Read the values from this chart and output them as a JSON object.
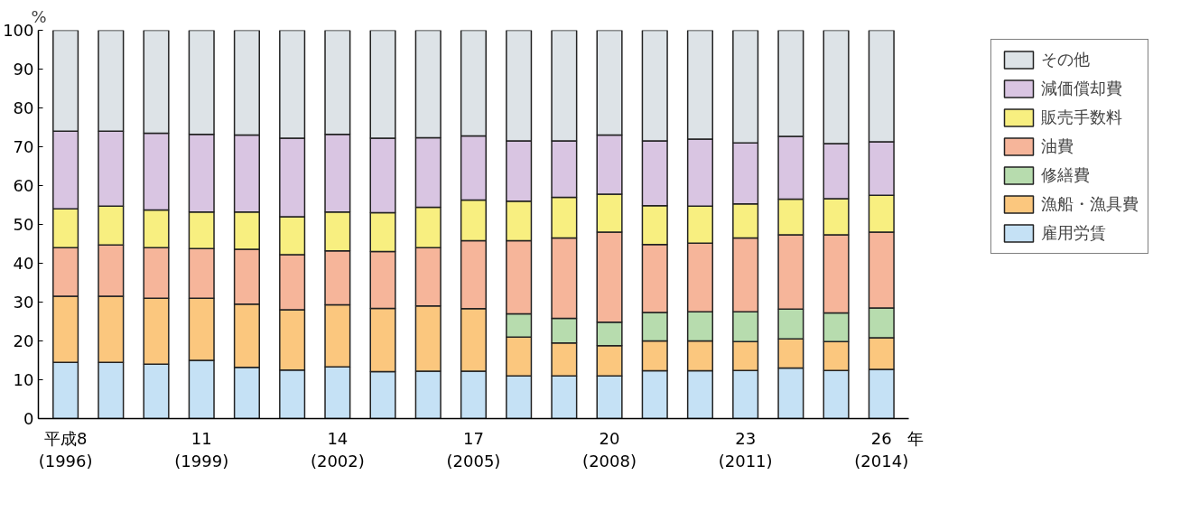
{
  "chart_data": {
    "type": "bar",
    "stacked": true,
    "ylabel": "%",
    "xlabel": "年",
    "categories": [
      "平成8\n(1996)",
      null,
      null,
      "11\n(1999)",
      null,
      null,
      "14\n(2002)",
      null,
      null,
      "17\n(2005)",
      null,
      null,
      "20\n(2008)",
      null,
      null,
      "23\n(2011)",
      null,
      null,
      "26\n(2014)"
    ],
    "series": [
      {
        "name": "雇用労賃",
        "color": "#c5e1f5",
        "values": [
          14.5,
          14.5,
          14,
          15,
          13.2,
          12.5,
          13.3,
          12.1,
          12.2,
          12.2,
          11,
          11,
          11,
          12.3,
          12.3,
          12.4,
          13,
          12.4,
          12.7
        ]
      },
      {
        "name": "漁船・漁具費",
        "color": "#fbc77e",
        "values": [
          17,
          17,
          17,
          16,
          16.3,
          15.5,
          16,
          16.3,
          16.8,
          16.1,
          10,
          8.5,
          7.8,
          7.7,
          7.7,
          7.4,
          7.5,
          7.4,
          8.1
        ]
      },
      {
        "name": "修繕費",
        "color": "#b7dcae",
        "values": [
          null,
          null,
          null,
          null,
          null,
          null,
          null,
          null,
          null,
          null,
          6,
          6.3,
          6,
          7.3,
          7.5,
          7.7,
          7.7,
          7.4,
          7.7
        ]
      },
      {
        "name": "油費",
        "color": "#f6b59a",
        "values": [
          12.5,
          13.2,
          13,
          12.8,
          14.1,
          14.2,
          13.9,
          14.6,
          15,
          17.5,
          18.8,
          20.7,
          23.2,
          17.5,
          17.7,
          19,
          19.1,
          20.1,
          19.5
        ]
      },
      {
        "name": "販売手数料",
        "color": "#f8ef80",
        "values": [
          10,
          10,
          9.7,
          9.4,
          9.6,
          9.8,
          10,
          10,
          10.4,
          10.5,
          10.2,
          10.5,
          9.8,
          10,
          9.5,
          8.8,
          9.2,
          9.3,
          9.5
        ]
      },
      {
        "name": "減価償却費",
        "color": "#d9c5e2",
        "values": [
          20,
          19.3,
          19.8,
          20,
          19.8,
          20.2,
          20,
          19.2,
          17.9,
          16.5,
          15.5,
          14.5,
          15.2,
          16.7,
          17.3,
          15.7,
          16.2,
          14.2,
          13.8
        ]
      },
      {
        "name": "その他",
        "color": "#dde3e7",
        "values": [
          26,
          26,
          26.5,
          26.8,
          27,
          27.8,
          26.8,
          27.8,
          27.7,
          27.2,
          28.5,
          28.5,
          27,
          28.5,
          28,
          29,
          27.3,
          29.2,
          28.7
        ]
      }
    ],
    "ylim": [
      0,
      100
    ],
    "yticks": [
      0,
      10,
      20,
      30,
      40,
      50,
      60,
      70,
      80,
      90,
      100
    ],
    "grid": false,
    "legend": "top right"
  }
}
